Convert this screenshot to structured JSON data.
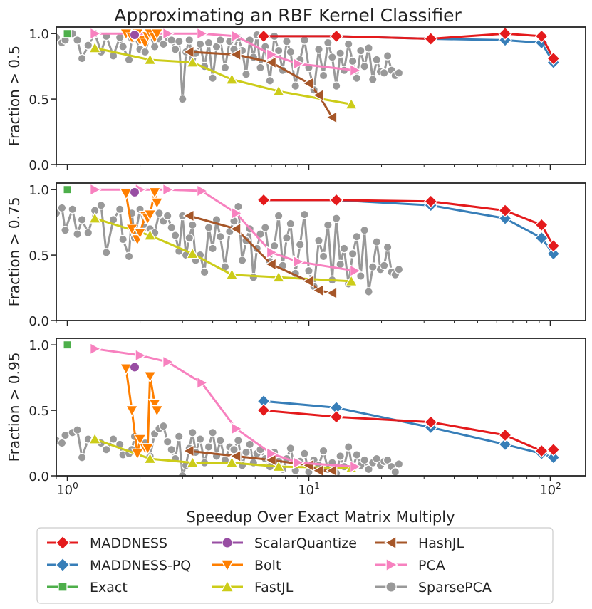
{
  "title": "Approximating an RBF Kernel Classifier",
  "chart_data": {
    "type": "line",
    "title": "Approximating an RBF Kernel Classifier",
    "xlabel": "Speedup Over Exact Matrix Multiply",
    "xscale": "log",
    "xlim": [
      0.9,
      140
    ],
    "xticks": [
      {
        "v": 1,
        "label": "10",
        "exp": "0"
      },
      {
        "v": 10,
        "label": "10",
        "exp": "1"
      },
      {
        "v": 100,
        "label": "10",
        "exp": "2"
      }
    ],
    "ylim": [
      0,
      1.05
    ],
    "yticks": [
      "0.0",
      "0.5",
      "1.0"
    ],
    "legend_columns": [
      [
        "MADDNESS",
        "MADDNESS-PQ",
        "Exact"
      ],
      [
        "ScalarQuantize",
        "Bolt",
        "FastJL"
      ],
      [
        "HashJL",
        "PCA",
        "SparsePCA"
      ]
    ],
    "series_styles": [
      {
        "name": "MADDNESS",
        "color": "#e41a1c",
        "marker": "diamond"
      },
      {
        "name": "MADDNESS-PQ",
        "color": "#377eb8",
        "marker": "diamond"
      },
      {
        "name": "Exact",
        "color": "#4daf4a",
        "marker": "square"
      },
      {
        "name": "ScalarQuantize",
        "color": "#984ea3",
        "marker": "circle"
      },
      {
        "name": "Bolt",
        "color": "#ff7f00",
        "marker": "triangle-down"
      },
      {
        "name": "FastJL",
        "color": "#cccc19",
        "marker": "triangle-up"
      },
      {
        "name": "HashJL",
        "color": "#a65628",
        "marker": "triangle-left"
      },
      {
        "name": "PCA",
        "color": "#f781bf",
        "marker": "triangle-right"
      },
      {
        "name": "SparsePCA",
        "color": "#999999",
        "marker": "circle"
      }
    ],
    "panels": [
      {
        "ylabel": "Fraction > 0.5",
        "series": [
          {
            "name": "SparsePCA",
            "x": [
              0.9,
              0.95,
              0.98,
              1.05,
              1.1,
              1.15,
              1.22,
              1.3,
              1.38,
              1.45,
              1.55,
              1.65,
              1.7,
              1.8,
              1.85,
              1.9,
              2.0,
              2.1,
              2.2,
              2.3,
              2.4,
              2.5,
              2.6,
              2.7,
              2.8,
              2.9,
              3.0,
              3.1,
              3.2,
              3.3,
              3.4,
              3.55,
              3.7,
              3.85,
              4.0,
              4.15,
              4.3,
              4.5,
              4.7,
              4.9,
              5.1,
              5.3,
              5.5,
              5.7,
              5.9,
              6.1,
              6.3,
              6.6,
              6.9,
              7.2,
              7.5,
              7.8,
              8.1,
              8.4,
              8.8,
              9.2,
              9.6,
              10.0,
              10.5,
              11.0,
              11.5,
              12.0,
              12.5,
              13.0,
              13.5,
              14.0,
              14.6,
              15.2,
              15.8,
              16.4,
              17.0,
              17.7,
              18.4,
              19.1,
              19.8,
              20.5,
              21.2,
              22.0,
              22.8,
              23.6
            ],
            "y": [
              0.97,
              0.93,
              0.95,
              1.0,
              0.95,
              0.81,
              0.91,
              1.0,
              0.86,
              0.98,
              0.83,
              0.97,
              0.9,
              0.8,
              0.96,
              0.98,
              0.88,
              0.86,
              0.99,
              0.9,
              0.96,
              0.92,
              0.97,
              0.95,
              0.88,
              0.94,
              0.5,
              0.86,
              0.95,
              0.81,
              0.85,
              0.92,
              0.75,
              0.93,
              0.66,
              0.9,
              0.95,
              0.74,
              0.94,
              0.88,
              0.97,
              0.87,
              0.69,
              0.95,
              0.82,
              0.99,
              0.74,
              0.9,
              0.64,
              0.98,
              0.87,
              0.72,
              0.94,
              0.86,
              0.6,
              0.8,
              0.95,
              0.74,
              0.57,
              0.88,
              0.68,
              0.93,
              0.82,
              0.6,
              0.85,
              0.72,
              0.92,
              0.79,
              0.66,
              0.87,
              0.75,
              0.89,
              0.65,
              0.8,
              0.71,
              0.7,
              0.83,
              0.72,
              0.68,
              0.7
            ]
          },
          {
            "name": "FastJL",
            "x": [
              1.3,
              2.2,
              3.3,
              4.8,
              7.5,
              15.0
            ],
            "y": [
              0.89,
              0.8,
              0.78,
              0.65,
              0.56,
              0.46
            ]
          },
          {
            "name": "HashJL",
            "x": [
              3.2,
              5.0,
              7.0,
              10.0,
              11.0,
              12.5
            ],
            "y": [
              0.86,
              0.84,
              0.78,
              0.62,
              0.53,
              0.36
            ]
          },
          {
            "name": "PCA",
            "x": [
              1.3,
              2.0,
              2.6,
              3.6,
              5.0,
              7.0,
              9.0,
              15.5
            ],
            "y": [
              1.0,
              1.0,
              1.0,
              1.0,
              0.98,
              0.84,
              0.77,
              0.72
            ]
          },
          {
            "name": "Bolt",
            "x": [
              1.75,
              1.85,
              1.95,
              2.0,
              2.1,
              2.15,
              2.2,
              2.3,
              2.35
            ],
            "y": [
              1.0,
              0.97,
              1.0,
              0.95,
              0.93,
              0.98,
              1.0,
              0.97,
              1.0
            ]
          },
          {
            "name": "ScalarQuantize",
            "x": [
              1.9
            ],
            "y": [
              0.99
            ]
          },
          {
            "name": "Exact",
            "x": [
              1.0
            ],
            "y": [
              1.0
            ]
          },
          {
            "name": "MADDNESS-PQ",
            "x": [
              6.5,
              13.0,
              32.0,
              65.0,
              92.0,
              103.0
            ],
            "y": [
              0.98,
              0.98,
              0.96,
              0.95,
              0.93,
              0.78
            ]
          },
          {
            "name": "MADDNESS",
            "x": [
              6.5,
              13.0,
              32.0,
              65.0,
              92.0,
              103.0
            ],
            "y": [
              0.98,
              0.98,
              0.96,
              1.0,
              0.98,
              0.81
            ]
          }
        ]
      },
      {
        "ylabel": "Fraction > 0.75",
        "series": [
          {
            "name": "SparsePCA",
            "x": [
              0.9,
              0.95,
              0.98,
              1.05,
              1.1,
              1.15,
              1.22,
              1.3,
              1.38,
              1.45,
              1.55,
              1.65,
              1.7,
              1.8,
              1.85,
              1.9,
              2.0,
              2.1,
              2.2,
              2.3,
              2.4,
              2.5,
              2.6,
              2.7,
              2.8,
              2.9,
              3.0,
              3.1,
              3.2,
              3.3,
              3.4,
              3.55,
              3.7,
              3.85,
              4.0,
              4.15,
              4.3,
              4.5,
              4.7,
              4.9,
              5.1,
              5.3,
              5.5,
              5.7,
              5.9,
              6.1,
              6.3,
              6.6,
              6.9,
              7.2,
              7.5,
              7.8,
              8.1,
              8.4,
              8.8,
              9.2,
              9.6,
              10.0,
              10.5,
              11.0,
              11.5,
              12.0,
              12.5,
              13.0,
              13.5,
              14.0,
              14.6,
              15.2,
              15.8,
              16.4,
              17.0,
              17.7,
              18.4,
              19.1,
              19.8,
              20.5,
              21.2,
              22.0,
              22.8,
              23.6
            ],
            "y": [
              0.82,
              0.86,
              0.69,
              0.85,
              0.66,
              0.77,
              0.67,
              0.84,
              0.88,
              0.52,
              0.77,
              0.85,
              0.62,
              0.49,
              0.82,
              0.63,
              0.85,
              0.71,
              0.7,
              0.67,
              0.82,
              0.76,
              0.8,
              0.71,
              0.65,
              0.53,
              0.8,
              0.5,
              0.63,
              0.73,
              0.46,
              0.5,
              0.37,
              0.71,
              0.55,
              0.77,
              0.64,
              0.41,
              0.68,
              0.76,
              0.87,
              0.46,
              0.61,
              0.7,
              0.33,
              0.55,
              0.66,
              0.71,
              0.45,
              0.57,
              0.8,
              0.42,
              0.63,
              0.74,
              0.36,
              0.58,
              0.81,
              0.38,
              0.26,
              0.61,
              0.49,
              0.73,
              0.31,
              0.78,
              0.43,
              0.55,
              0.28,
              0.51,
              0.64,
              0.34,
              0.69,
              0.22,
              0.41,
              0.6,
              0.39,
              0.42,
              0.56,
              0.37,
              0.35,
              0.39
            ]
          },
          {
            "name": "FastJL",
            "x": [
              1.3,
              2.2,
              3.3,
              4.8,
              7.5,
              15.0
            ],
            "y": [
              0.78,
              0.65,
              0.51,
              0.35,
              0.33,
              0.3
            ]
          },
          {
            "name": "HashJL",
            "x": [
              3.2,
              5.0,
              7.0,
              10.0,
              11.0,
              12.5
            ],
            "y": [
              0.8,
              0.7,
              0.43,
              0.3,
              0.23,
              0.21
            ]
          },
          {
            "name": "PCA",
            "x": [
              1.3,
              2.0,
              2.6,
              3.6,
              5.0,
              7.0,
              9.0,
              15.5
            ],
            "y": [
              1.0,
              1.0,
              1.0,
              0.99,
              0.82,
              0.52,
              0.45,
              0.38
            ]
          },
          {
            "name": "Bolt",
            "x": [
              1.75,
              1.85,
              1.95,
              2.0,
              2.1,
              2.15,
              2.2,
              2.3,
              2.35
            ],
            "y": [
              0.97,
              0.7,
              0.62,
              0.67,
              0.8,
              0.78,
              0.81,
              0.98,
              0.9
            ]
          },
          {
            "name": "ScalarQuantize",
            "x": [
              1.9
            ],
            "y": [
              0.98
            ]
          },
          {
            "name": "Exact",
            "x": [
              1.0
            ],
            "y": [
              1.0
            ]
          },
          {
            "name": "MADDNESS-PQ",
            "x": [
              6.5,
              13.0,
              32.0,
              65.0,
              92.0,
              103.0
            ],
            "y": [
              0.92,
              0.92,
              0.88,
              0.78,
              0.63,
              0.51
            ]
          },
          {
            "name": "MADDNESS",
            "x": [
              6.5,
              13.0,
              32.0,
              65.0,
              92.0,
              103.0
            ],
            "y": [
              0.92,
              0.92,
              0.91,
              0.84,
              0.73,
              0.57
            ]
          }
        ]
      },
      {
        "ylabel": "Fraction > 0.95",
        "series": [
          {
            "name": "SparsePCA",
            "x": [
              0.9,
              0.95,
              0.98,
              1.05,
              1.1,
              1.15,
              1.22,
              1.3,
              1.38,
              1.45,
              1.55,
              1.65,
              1.7,
              1.8,
              1.85,
              1.9,
              2.0,
              2.1,
              2.2,
              2.3,
              2.4,
              2.5,
              2.6,
              2.7,
              2.8,
              2.9,
              3.0,
              3.1,
              3.2,
              3.3,
              3.4,
              3.55,
              3.7,
              3.85,
              4.0,
              4.15,
              4.3,
              4.5,
              4.7,
              4.9,
              5.1,
              5.3,
              5.5,
              5.7,
              5.9,
              6.1,
              6.3,
              6.6,
              6.9,
              7.2,
              7.5,
              7.8,
              8.1,
              8.4,
              8.8,
              9.2,
              9.6,
              10.0,
              10.5,
              11.0,
              11.5,
              12.0,
              12.5,
              13.0,
              13.5,
              14.0,
              14.6,
              15.2,
              15.8,
              16.4,
              17.0,
              17.7,
              18.4,
              19.1,
              19.8,
              20.5,
              21.2,
              22.0,
              22.8,
              23.6
            ],
            "y": [
              0.27,
              0.25,
              0.31,
              0.33,
              0.35,
              0.14,
              0.28,
              0.27,
              0.25,
              0.2,
              0.28,
              0.24,
              0.16,
              0.17,
              0.2,
              0.3,
              0.28,
              0.25,
              0.15,
              0.32,
              0.36,
              0.38,
              0.26,
              0.2,
              0.13,
              0.3,
              0.0,
              0.08,
              0.21,
              0.33,
              0.18,
              0.28,
              0.1,
              0.22,
              0.33,
              0.15,
              0.27,
              0.12,
              0.22,
              0.2,
              0.27,
              0.08,
              0.18,
              0.24,
              0.1,
              0.17,
              0.2,
              0.13,
              0.07,
              0.18,
              0.11,
              0.05,
              0.13,
              0.21,
              0.04,
              0.11,
              0.17,
              0.03,
              0.12,
              0.08,
              0.19,
              0.05,
              0.1,
              0.02,
              0.15,
              0.07,
              0.22,
              0.05,
              0.16,
              0.08,
              0.12,
              0.05,
              0.1,
              0.13,
              0.08,
              0.11,
              0.12,
              0.07,
              0.03,
              0.09
            ]
          },
          {
            "name": "FastJL",
            "x": [
              1.3,
              2.2,
              3.3,
              4.8,
              7.5,
              15.0
            ],
            "y": [
              0.28,
              0.13,
              0.1,
              0.1,
              0.07,
              0.06
            ]
          },
          {
            "name": "HashJL",
            "x": [
              3.2,
              5.0,
              7.0,
              10.0,
              11.0,
              12.5
            ],
            "y": [
              0.19,
              0.15,
              0.12,
              0.08,
              0.04,
              0.04
            ]
          },
          {
            "name": "PCA",
            "x": [
              1.3,
              2.0,
              2.6,
              3.6,
              5.0,
              7.0,
              9.0,
              15.5
            ],
            "y": [
              0.97,
              0.92,
              0.87,
              0.71,
              0.36,
              0.17,
              0.1,
              0.07
            ]
          },
          {
            "name": "Bolt",
            "x": [
              1.75,
              1.85,
              1.95,
              2.0,
              2.1,
              2.15,
              2.2,
              2.3,
              2.35
            ],
            "y": [
              0.82,
              0.5,
              0.17,
              0.28,
              0.21,
              0.21,
              0.76,
              0.55,
              0.5
            ]
          },
          {
            "name": "ScalarQuantize",
            "x": [
              1.9
            ],
            "y": [
              0.83
            ]
          },
          {
            "name": "Exact",
            "x": [
              1.0
            ],
            "y": [
              1.0
            ]
          },
          {
            "name": "MADDNESS-PQ",
            "x": [
              6.5,
              13.0,
              32.0,
              65.0,
              92.0,
              103.0
            ],
            "y": [
              0.57,
              0.52,
              0.37,
              0.24,
              0.17,
              0.14
            ]
          },
          {
            "name": "MADDNESS",
            "x": [
              6.5,
              13.0,
              32.0,
              65.0,
              92.0,
              103.0
            ],
            "y": [
              0.5,
              0.45,
              0.41,
              0.31,
              0.19,
              0.2
            ]
          }
        ]
      }
    ]
  }
}
